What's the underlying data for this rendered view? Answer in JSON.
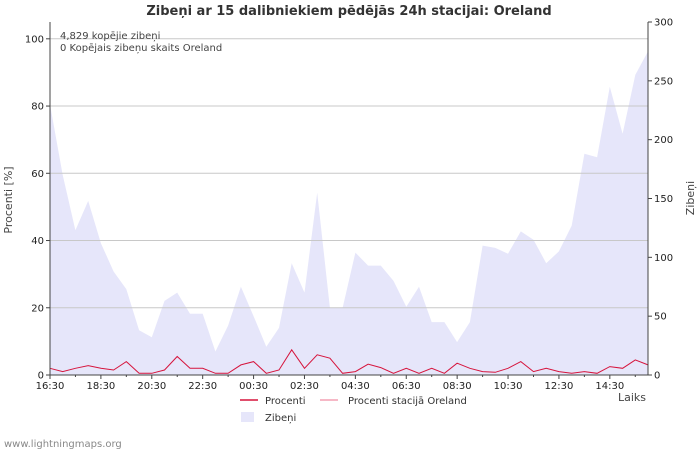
{
  "chart_data": {
    "type": "area",
    "title": "Zibeņi ar 15 dalibniekiem pēdējās 24h stacijai: Oreland",
    "ylabel_left": "Procenti   [%]",
    "ylabel_right": "Zibeņi",
    "xlabel": "Laiks",
    "ylim_left": [
      0,
      105
    ],
    "ylim_right": [
      0,
      300
    ],
    "yticks_left": [
      0,
      20,
      40,
      60,
      80,
      100
    ],
    "yticks_right": [
      0,
      50,
      100,
      150,
      200,
      250,
      300
    ],
    "xlim": [
      0,
      23.5
    ],
    "xticks": [
      {
        "x": 0,
        "label": "16:30"
      },
      {
        "x": 2,
        "label": "18:30"
      },
      {
        "x": 4,
        "label": "20:30"
      },
      {
        "x": 6,
        "label": "22:30"
      },
      {
        "x": 8,
        "label": "00:30"
      },
      {
        "x": 10,
        "label": "02:30"
      },
      {
        "x": 12,
        "label": "04:30"
      },
      {
        "x": 14,
        "label": "06:30"
      },
      {
        "x": 16,
        "label": "08:30"
      },
      {
        "x": 18,
        "label": "10:30"
      },
      {
        "x": 20,
        "label": "12:30"
      },
      {
        "x": 22,
        "label": "14:30"
      }
    ],
    "annotations": [
      "4,829 kopējie zibeņi",
      "0 Kopējais zibeņu skaits Oreland"
    ],
    "series": [
      {
        "name": "Zibeņi",
        "axis": "right",
        "color": "#e6e6fa",
        "x": [
          0,
          0.5,
          1,
          1.5,
          2,
          2.5,
          3,
          3.5,
          4,
          4.5,
          5,
          5.5,
          6,
          6.5,
          7,
          7.5,
          8,
          8.5,
          9,
          9.5,
          10,
          10.5,
          11,
          11.5,
          12,
          12.5,
          13,
          13.5,
          14,
          14.5,
          15,
          15.5,
          16,
          16.5,
          17,
          17.5,
          18,
          18.5,
          19,
          19.5,
          20,
          20.5,
          21,
          21.5,
          22,
          22.5,
          23,
          23.5
        ],
        "values": [
          230,
          170,
          123,
          148,
          112,
          88,
          73,
          38,
          32,
          63,
          70,
          52,
          52,
          20,
          42,
          75,
          50,
          24,
          40,
          95,
          70,
          155,
          57,
          57,
          104,
          93,
          93,
          80,
          58,
          75,
          45,
          45,
          28,
          45,
          110,
          108,
          103,
          122,
          115,
          95,
          105,
          127,
          188,
          185,
          245,
          205,
          255,
          275
        ]
      },
      {
        "name": "Procenti",
        "axis": "left",
        "color": "#d6143c",
        "x": [
          0,
          0.5,
          1,
          1.5,
          2,
          2.5,
          3,
          3.5,
          4,
          4.5,
          5,
          5.5,
          6,
          6.5,
          7,
          7.5,
          8,
          8.5,
          9,
          9.5,
          10,
          10.5,
          11,
          11.5,
          12,
          12.5,
          13,
          13.5,
          14,
          14.5,
          15,
          15.5,
          16,
          16.5,
          17,
          17.5,
          18,
          18.5,
          19,
          19.5,
          20,
          20.5,
          21,
          21.5,
          22,
          22.5,
          23,
          23.5
        ],
        "values": [
          2,
          1,
          2,
          2.8,
          2,
          1.5,
          4,
          0.5,
          0.5,
          1.5,
          5.5,
          2,
          2,
          0.5,
          0.5,
          3,
          4,
          0.5,
          1.5,
          7.5,
          2,
          6,
          5,
          0.5,
          1,
          3.2,
          2.2,
          0.5,
          2,
          0.5,
          2,
          0.5,
          3.5,
          2,
          1,
          0.8,
          2,
          4,
          1,
          2,
          1,
          0.5,
          1,
          0.5,
          2.5,
          2,
          4.5,
          3
        ]
      },
      {
        "name": "Procenti stacijā Oreland",
        "axis": "left",
        "color": "#f4a0b4",
        "x": [
          0,
          23.5
        ],
        "values": [
          0,
          0
        ]
      }
    ],
    "legend": [
      "Procenti",
      "Procenti stacijā Oreland",
      "Zibeņi"
    ]
  },
  "footer": "www.lightningmaps.org"
}
